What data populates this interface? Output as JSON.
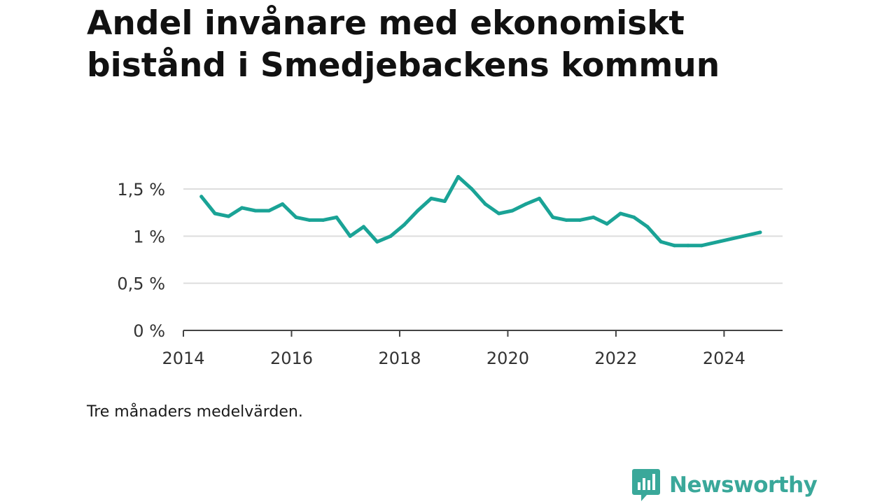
{
  "title": "Andel invånare med ekonomiskt bistånd i Smedjebackens kommun",
  "note": "Tre månaders medelvärden.",
  "brand": {
    "name": "Newsworthy",
    "icon": "newsworthy-logo-icon",
    "color": "#3aa89a"
  },
  "chart_data": {
    "type": "line",
    "title": "Andel invånare med ekonomiskt bistånd i Smedjebackens kommun",
    "xlabel": "",
    "ylabel": "",
    "xlim": [
      "2014-01-01",
      "2025-01-31"
    ],
    "ylim": [
      0,
      1.5
    ],
    "y_ticks": [
      {
        "value": 0,
        "label": "0 %"
      },
      {
        "value": 0.5,
        "label": "0,5 %"
      },
      {
        "value": 1,
        "label": "1 %"
      },
      {
        "value": 1.5,
        "label": "1,5 %"
      }
    ],
    "x_ticks": [
      {
        "value": "2014-01-01",
        "label": "2014"
      },
      {
        "value": "2016-01-01",
        "label": "2016"
      },
      {
        "value": "2018-01-01",
        "label": "2018"
      },
      {
        "value": "2020-01-01",
        "label": "2020"
      },
      {
        "value": "2022-01-01",
        "label": "2022"
      },
      {
        "value": "2024-01-01",
        "label": "2024"
      }
    ],
    "grid": true,
    "line_color": "#1aa396",
    "series": [
      {
        "x": [
          "2014-05",
          "2014-08",
          "2014-11",
          "2015-02",
          "2015-05",
          "2015-08",
          "2015-11",
          "2016-02",
          "2016-05",
          "2016-08",
          "2016-11",
          "2017-02",
          "2017-05",
          "2017-08",
          "2017-11",
          "2018-02",
          "2018-05",
          "2018-08",
          "2018-11",
          "2019-02",
          "2019-05",
          "2019-08",
          "2019-11",
          "2020-02",
          "2020-05",
          "2020-08",
          "2020-11",
          "2021-02",
          "2021-05",
          "2021-08",
          "2021-11",
          "2022-02",
          "2022-05",
          "2022-08",
          "2022-11",
          "2023-02",
          "2023-05",
          "2023-08",
          "2024-09"
        ],
        "values": [
          1.42,
          1.24,
          1.21,
          1.3,
          1.27,
          1.27,
          1.34,
          1.2,
          1.17,
          1.17,
          1.2,
          1.0,
          1.1,
          0.94,
          1.0,
          1.12,
          1.27,
          1.4,
          1.37,
          1.63,
          1.5,
          1.34,
          1.24,
          1.27,
          1.34,
          1.4,
          1.2,
          1.17,
          1.17,
          1.2,
          1.13,
          1.24,
          1.2,
          1.1,
          0.94,
          0.9,
          0.9,
          0.9,
          1.04
        ]
      }
    ]
  }
}
